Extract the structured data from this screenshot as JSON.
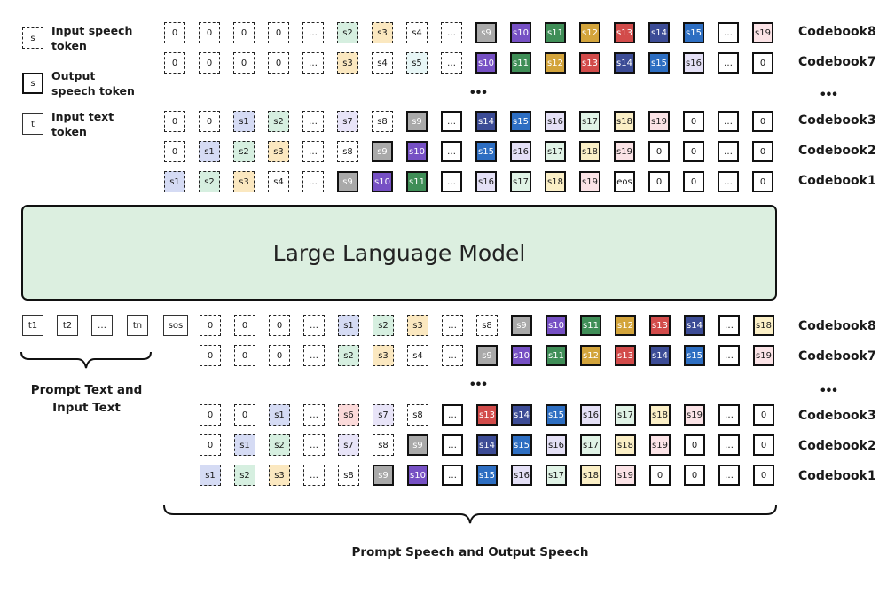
{
  "legend": {
    "input_speech": {
      "symbol": "s",
      "label": "Input speech token"
    },
    "output_speech": {
      "symbol": "s",
      "label": "Output speech token"
    },
    "input_text": {
      "symbol": "t",
      "label": "Input text token"
    }
  },
  "model_label": "Large Language Model",
  "ellipsis": "•••",
  "captions": {
    "prompt_text": "Prompt Text and Input Text",
    "prompt_speech": "Prompt Speech and Output Speech"
  },
  "colors": {
    "s1": "#d5dbf4",
    "s2": "#d6efe0",
    "s3": "#fbe8c0",
    "s4": "#ffffff",
    "s5": "#e8f6f6",
    "s6": "#fbdada",
    "s7": "#e8e4f8",
    "s8": "#ffffff",
    "s9": "#a9a9a9",
    "s10": "#7650c4",
    "s11": "#3f8e57",
    "s12": "#d3a43b",
    "s13": "#d24b4a",
    "s14": "#3c4c96",
    "s15": "#2d6ec2",
    "s16": "#e4e0f6",
    "s17": "#e0f3e6",
    "s18": "#fbefc6",
    "s19": "#fbe3e6"
  },
  "top_rows": [
    {
      "label": "Codebook8",
      "cells": [
        "0i",
        "0i",
        "0i",
        "0i",
        "…i",
        "s2i",
        "s3i",
        "s4i",
        "…i",
        "s9",
        "s10",
        "s11",
        "s12",
        "s13",
        "s14",
        "s15",
        "…",
        "s19"
      ]
    },
    {
      "label": "Codebook7",
      "cells": [
        "0i",
        "0i",
        "0i",
        "0i",
        "…i",
        "s3i",
        "s4i",
        "s5i",
        "…i",
        "s10",
        "s11",
        "s12",
        "s13",
        "s14",
        "s15",
        "s16",
        "…",
        "0"
      ]
    },
    {
      "label": "Codebook3",
      "cells": [
        "0i",
        "0i",
        "s1i",
        "s2i",
        "…i",
        "s7i",
        "s8i",
        "s9",
        "…",
        "s14",
        "s15",
        "s16",
        "s17",
        "s18",
        "s19",
        "0",
        "…",
        "0"
      ]
    },
    {
      "label": "Codebook2",
      "cells": [
        "0i",
        "s1i",
        "s2i",
        "s3i",
        "…i",
        "s8i",
        "s9",
        "s10",
        "…",
        "s15",
        "s16",
        "s17",
        "s18",
        "s19",
        "0",
        "0",
        "…",
        "0"
      ]
    },
    {
      "label": "Codebook1",
      "cells": [
        "s1i",
        "s2i",
        "s3i",
        "s4i",
        "…i",
        "s9",
        "s10",
        "s11",
        "…",
        "s16",
        "s17",
        "s18",
        "s19",
        "eos",
        "0",
        "0",
        "…",
        "0"
      ]
    }
  ],
  "text_tokens": [
    "t1",
    "t2",
    "…",
    "tn"
  ],
  "sos_token": "sos",
  "bottom_rows": [
    {
      "label": "Codebook8",
      "cells": [
        "0i",
        "0i",
        "0i",
        "…i",
        "s1i",
        "s2i",
        "s3i",
        "…i",
        "s8i",
        "s9",
        "s10",
        "s11",
        "s12",
        "s13",
        "s14",
        "…",
        "s18"
      ]
    },
    {
      "label": "Codebook7",
      "cells": [
        "0i",
        "0i",
        "0i",
        "…i",
        "s2i",
        "s3i",
        "s4i",
        "…i",
        "s9",
        "s10",
        "s11",
        "s12",
        "s13",
        "s14",
        "s15",
        "…",
        "s19"
      ]
    },
    {
      "label": "Codebook3",
      "cells": [
        "0i",
        "0i",
        "s1i",
        "…i",
        "s6i",
        "s7i",
        "s8i",
        "…",
        "s13",
        "s14",
        "s15",
        "s16",
        "s17",
        "s18",
        "s19",
        "…",
        "0"
      ]
    },
    {
      "label": "Codebook2",
      "cells": [
        "0i",
        "s1i",
        "s2i",
        "…i",
        "s7i",
        "s8i",
        "s9",
        "…",
        "s14",
        "s15",
        "s16",
        "s17",
        "s18",
        "s19",
        "0",
        "…",
        "0"
      ]
    },
    {
      "label": "Codebook1",
      "cells": [
        "s1i",
        "s2i",
        "s3i",
        "…i",
        "s8i",
        "s9",
        "s10",
        "…",
        "s15",
        "s16",
        "s17",
        "s18",
        "s19",
        "0",
        "0",
        "…",
        "0"
      ]
    }
  ]
}
